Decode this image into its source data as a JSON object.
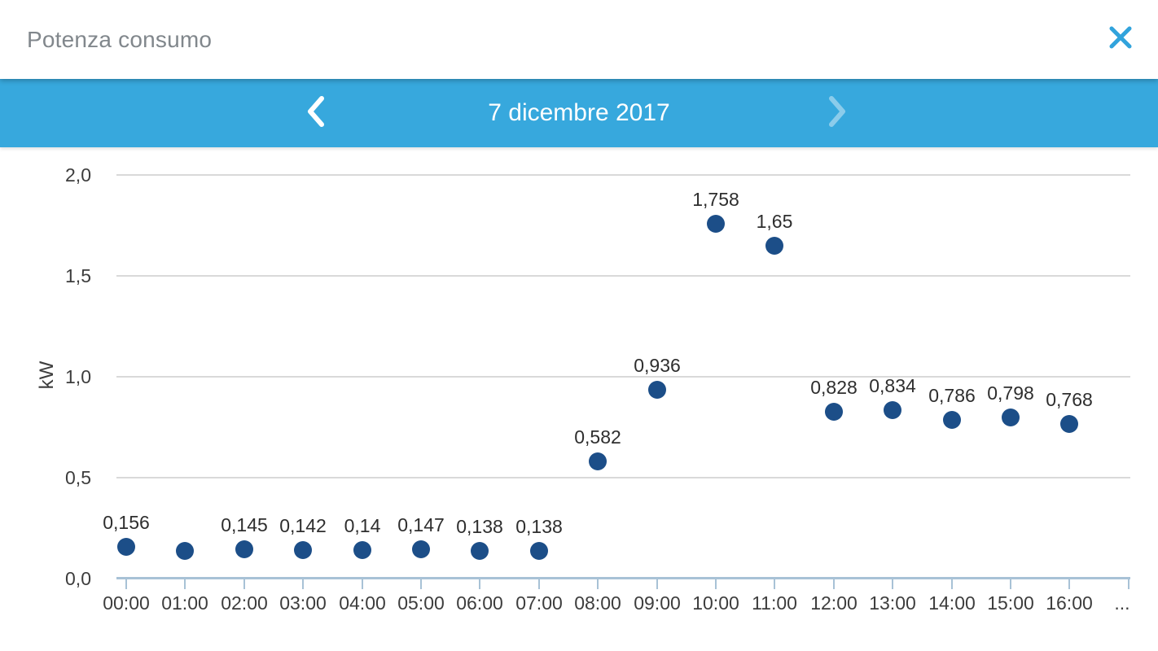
{
  "app_bar": {
    "title": "Potenza consumo",
    "close_icon": "x-icon",
    "close_color": "#31a3dc"
  },
  "date_nav": {
    "date": "7 dicembre 2017",
    "prev_icon": "chevron-left-icon",
    "next_icon": "chevron-right-icon",
    "bar_color": "#37a8dd"
  },
  "chart_data": {
    "type": "scatter",
    "title": "Potenza consumo",
    "xlabel": "",
    "ylabel": "kW",
    "ylim": [
      0,
      2
    ],
    "grid": true,
    "ytick_values": [
      0,
      0.5,
      1,
      1.5,
      2
    ],
    "ytick_labels": [
      "0,0",
      "0,5",
      "1,0",
      "1,5",
      "2,0"
    ],
    "categories": [
      "00:00",
      "01:00",
      "02:00",
      "03:00",
      "04:00",
      "05:00",
      "06:00",
      "07:00",
      "08:00",
      "09:00",
      "10:00",
      "11:00",
      "12:00",
      "13:00",
      "14:00",
      "15:00",
      "16:00",
      "..."
    ],
    "point_color": "#1c4e88",
    "series": [
      {
        "name": "Potenza consumo",
        "points": [
          {
            "x": "00:00",
            "y": 0.156,
            "label": "0,156"
          },
          {
            "x": "01:00",
            "y": 0.139,
            "label": null
          },
          {
            "x": "02:00",
            "y": 0.145,
            "label": "0,145"
          },
          {
            "x": "03:00",
            "y": 0.142,
            "label": "0,142"
          },
          {
            "x": "04:00",
            "y": 0.14,
            "label": "0,14"
          },
          {
            "x": "05:00",
            "y": 0.147,
            "label": "0,147"
          },
          {
            "x": "06:00",
            "y": 0.138,
            "label": "0,138"
          },
          {
            "x": "07:00",
            "y": 0.138,
            "label": "0,138"
          },
          {
            "x": "08:00",
            "y": 0.582,
            "label": "0,582"
          },
          {
            "x": "09:00",
            "y": 0.936,
            "label": "0,936"
          },
          {
            "x": "10:00",
            "y": 1.758,
            "label": "1,758"
          },
          {
            "x": "11:00",
            "y": 1.65,
            "label": "1,65"
          },
          {
            "x": "12:00",
            "y": 0.828,
            "label": "0,828"
          },
          {
            "x": "13:00",
            "y": 0.834,
            "label": "0,834"
          },
          {
            "x": "14:00",
            "y": 0.786,
            "label": "0,786"
          },
          {
            "x": "15:00",
            "y": 0.798,
            "label": "0,798"
          },
          {
            "x": "16:00",
            "y": 0.768,
            "label": "0,768"
          }
        ]
      }
    ]
  }
}
